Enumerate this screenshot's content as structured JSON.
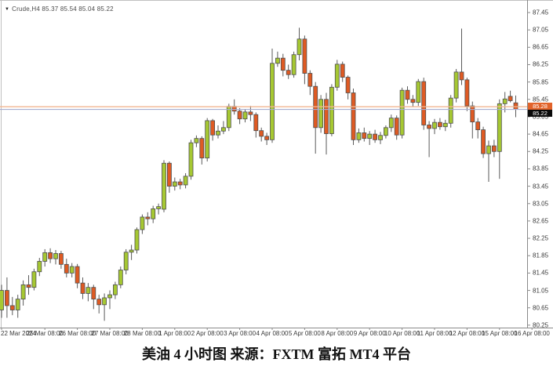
{
  "window": {
    "dropdown_icon": "▼",
    "symbol_readout": "Crude,H4 85.37 85.54 85.04 85.22"
  },
  "caption": "美油 4 小时图  来源：FXTM 富拓 MT4 平台",
  "chart_data": {
    "type": "candlestick",
    "symbol": "Crude",
    "timeframe": "H4",
    "current_bar": {
      "open": 85.37,
      "high": 85.54,
      "low": 85.04,
      "close": 85.22
    },
    "ask_label": "85.28",
    "last_label": "85.22",
    "ask_price": 85.28,
    "last_price": 85.22,
    "grid": "off",
    "y_axis": {
      "max": 87.45,
      "min": 80.25,
      "step": 0.4,
      "ticks": [
        87.45,
        87.05,
        86.65,
        86.25,
        85.85,
        85.45,
        85.05,
        84.65,
        84.25,
        83.85,
        83.45,
        83.05,
        82.65,
        82.25,
        81.85,
        81.45,
        81.05,
        80.65,
        80.25
      ]
    },
    "x_axis": {
      "labels": [
        {
          "text": "22 Mar 2024",
          "bar": 0
        },
        {
          "text": "25 Mar 08:00",
          "bar": 8
        },
        {
          "text": "26 Mar 08:00",
          "bar": 14
        },
        {
          "text": "27 Mar 08:00",
          "bar": 20
        },
        {
          "text": "28 Mar 08:00",
          "bar": 26
        },
        {
          "text": "1 Apr 08:00",
          "bar": 32
        },
        {
          "text": "2 Apr 08:00",
          "bar": 38
        },
        {
          "text": "3 Apr 08:00",
          "bar": 44
        },
        {
          "text": "4 Apr 08:00",
          "bar": 50
        },
        {
          "text": "5 Apr 08:00",
          "bar": 56
        },
        {
          "text": "8 Apr 08:00",
          "bar": 62
        },
        {
          "text": "9 Apr 08:00",
          "bar": 68
        },
        {
          "text": "10 Apr 08:00",
          "bar": 74
        },
        {
          "text": "11 Apr 08:00",
          "bar": 80
        },
        {
          "text": "12 Apr 08:00",
          "bar": 86
        },
        {
          "text": "15 Apr 08:00",
          "bar": 92
        },
        {
          "text": "16 Apr 08:00",
          "bar": 98
        }
      ]
    },
    "colors": {
      "bull_fill": "#a6c832",
      "bear_fill": "#df5a23",
      "candle_stroke": "#4e4e4e",
      "wick": "#5a5a5a",
      "ask_line": "#f2b690",
      "last_line": "#a8aed0",
      "axis_line": "#8a8a8a",
      "border": "#c0c0c0"
    },
    "candles": [
      [
        80.6,
        81.18,
        80.42,
        81.05
      ],
      [
        81.05,
        81.35,
        80.42,
        80.7
      ],
      [
        80.7,
        80.9,
        80.48,
        80.6
      ],
      [
        80.6,
        80.95,
        80.42,
        80.85
      ],
      [
        80.85,
        81.28,
        80.7,
        81.18
      ],
      [
        81.18,
        81.4,
        80.95,
        81.12
      ],
      [
        81.12,
        81.55,
        81.05,
        81.48
      ],
      [
        81.48,
        81.8,
        81.38,
        81.72
      ],
      [
        81.72,
        82.0,
        81.6,
        81.92
      ],
      [
        81.92,
        82.02,
        81.68,
        81.78
      ],
      [
        81.78,
        81.98,
        81.65,
        81.9
      ],
      [
        81.9,
        81.96,
        81.55,
        81.65
      ],
      [
        81.65,
        81.78,
        81.35,
        81.45
      ],
      [
        81.45,
        81.68,
        81.35,
        81.6
      ],
      [
        81.6,
        81.66,
        81.1,
        81.22
      ],
      [
        81.22,
        81.35,
        80.85,
        80.98
      ],
      [
        80.98,
        81.22,
        80.8,
        81.12
      ],
      [
        81.12,
        81.18,
        80.62,
        80.85
      ],
      [
        80.85,
        80.95,
        80.52,
        80.72
      ],
      [
        80.72,
        80.98,
        80.35,
        80.88
      ],
      [
        80.88,
        81.05,
        80.62,
        80.95
      ],
      [
        80.95,
        81.25,
        80.85,
        81.18
      ],
      [
        81.18,
        81.6,
        81.1,
        81.52
      ],
      [
        81.52,
        82.0,
        81.42,
        81.93
      ],
      [
        81.93,
        82.1,
        81.75,
        81.98
      ],
      [
        81.98,
        82.5,
        81.9,
        82.45
      ],
      [
        82.45,
        82.8,
        82.35,
        82.74
      ],
      [
        82.74,
        82.85,
        82.55,
        82.7
      ],
      [
        82.7,
        83.0,
        82.6,
        82.93
      ],
      [
        82.93,
        83.05,
        82.8,
        82.98
      ],
      [
        82.92,
        84.05,
        82.85,
        83.98
      ],
      [
        83.98,
        84.02,
        83.3,
        83.45
      ],
      [
        83.45,
        83.65,
        83.35,
        83.55
      ],
      [
        83.55,
        83.62,
        83.38,
        83.48
      ],
      [
        83.48,
        83.75,
        83.4,
        83.68
      ],
      [
        83.68,
        84.52,
        83.6,
        84.45
      ],
      [
        84.45,
        84.62,
        84.35,
        84.55
      ],
      [
        84.55,
        84.6,
        83.95,
        84.1
      ],
      [
        84.1,
        85.02,
        84.02,
        84.96
      ],
      [
        84.96,
        85.0,
        84.5,
        84.63
      ],
      [
        84.63,
        84.85,
        84.55,
        84.72
      ],
      [
        84.72,
        84.95,
        84.65,
        84.8
      ],
      [
        84.8,
        85.35,
        84.72,
        85.29
      ],
      [
        85.29,
        85.45,
        85.1,
        85.18
      ],
      [
        85.18,
        85.25,
        84.88,
        85.0
      ],
      [
        85.0,
        85.22,
        84.92,
        85.16
      ],
      [
        85.16,
        85.3,
        84.95,
        85.1
      ],
      [
        85.1,
        85.15,
        84.57,
        84.73
      ],
      [
        84.73,
        84.8,
        84.48,
        84.6
      ],
      [
        84.6,
        84.68,
        84.4,
        84.52
      ],
      [
        84.52,
        86.62,
        84.45,
        86.28
      ],
      [
        86.28,
        86.55,
        86.2,
        86.4
      ],
      [
        86.4,
        86.5,
        85.98,
        86.12
      ],
      [
        86.12,
        86.25,
        85.92,
        86.02
      ],
      [
        86.02,
        86.55,
        85.95,
        86.48
      ],
      [
        86.48,
        87.1,
        86.35,
        86.84
      ],
      [
        86.84,
        86.92,
        85.8,
        86.05
      ],
      [
        86.05,
        86.12,
        85.55,
        85.75
      ],
      [
        85.75,
        85.85,
        84.2,
        84.8
      ],
      [
        84.8,
        85.55,
        84.68,
        85.45
      ],
      [
        85.45,
        85.6,
        84.18,
        84.66
      ],
      [
        84.66,
        85.8,
        84.6,
        85.73
      ],
      [
        85.73,
        86.36,
        85.65,
        86.26
      ],
      [
        86.26,
        86.32,
        85.85,
        85.96
      ],
      [
        85.96,
        86.0,
        85.45,
        85.6
      ],
      [
        85.6,
        85.7,
        84.4,
        84.52
      ],
      [
        84.52,
        84.78,
        84.45,
        84.68
      ],
      [
        84.68,
        84.8,
        84.48,
        84.55
      ],
      [
        84.55,
        84.72,
        84.4,
        84.65
      ],
      [
        84.65,
        84.75,
        84.45,
        84.52
      ],
      [
        84.52,
        84.7,
        84.42,
        84.62
      ],
      [
        84.62,
        84.85,
        84.55,
        84.8
      ],
      [
        84.8,
        85.1,
        84.7,
        85.02
      ],
      [
        85.02,
        85.08,
        84.52,
        84.63
      ],
      [
        84.63,
        85.72,
        84.55,
        85.66
      ],
      [
        85.66,
        85.75,
        85.35,
        85.45
      ],
      [
        85.45,
        85.55,
        85.28,
        85.38
      ],
      [
        85.38,
        85.92,
        85.3,
        85.86
      ],
      [
        85.86,
        85.95,
        84.75,
        84.86
      ],
      [
        84.86,
        84.95,
        84.12,
        84.78
      ],
      [
        84.78,
        85.0,
        84.65,
        84.92
      ],
      [
        84.92,
        85.02,
        84.75,
        84.82
      ],
      [
        84.82,
        84.98,
        84.72,
        84.9
      ],
      [
        84.9,
        85.55,
        84.8,
        85.48
      ],
      [
        85.48,
        86.15,
        85.38,
        86.08
      ],
      [
        86.08,
        87.08,
        85.78,
        85.9
      ],
      [
        85.9,
        85.95,
        85.18,
        85.3
      ],
      [
        85.3,
        85.4,
        84.55,
        84.93
      ],
      [
        84.93,
        85.02,
        84.55,
        84.75
      ],
      [
        84.75,
        84.82,
        84.1,
        84.2
      ],
      [
        84.2,
        84.5,
        83.55,
        84.38
      ],
      [
        84.38,
        84.52,
        84.12,
        84.25
      ],
      [
        84.25,
        85.45,
        83.62,
        85.35
      ],
      [
        85.35,
        85.62,
        85.15,
        85.46
      ],
      [
        85.52,
        85.65,
        85.38,
        85.42
      ],
      [
        85.37,
        85.54,
        85.04,
        85.22
      ]
    ]
  }
}
